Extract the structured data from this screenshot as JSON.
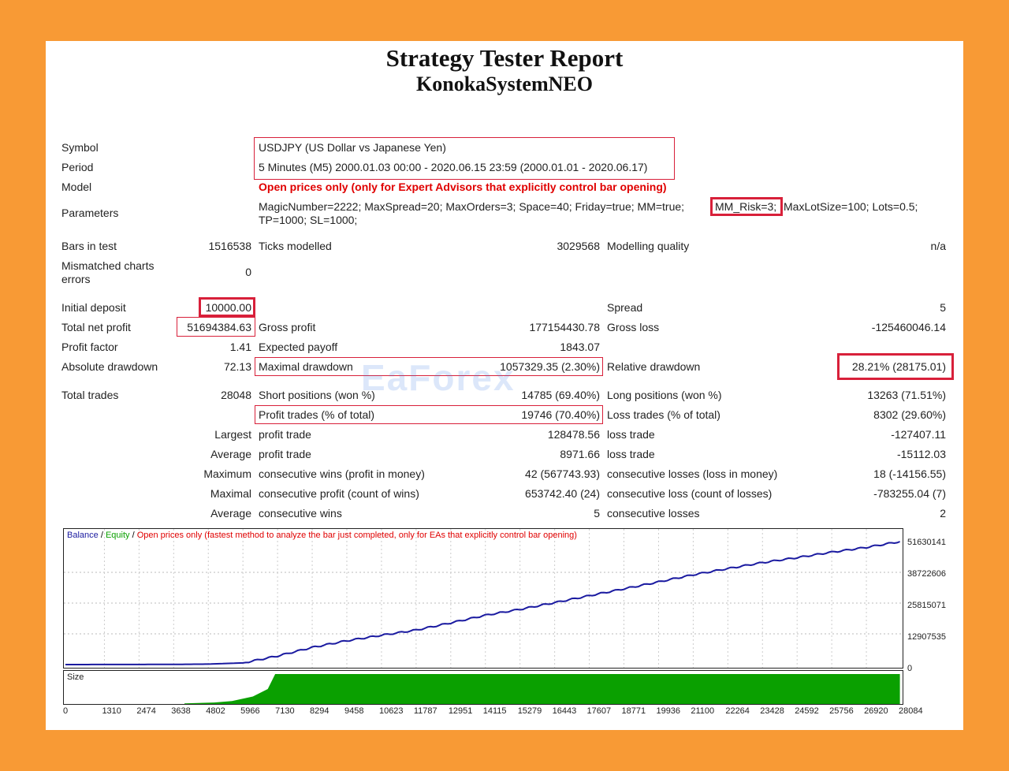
{
  "report": {
    "title": "Strategy Tester Report",
    "ea_name": "KonokaSystemNEO"
  },
  "info": {
    "symbol_label": "Symbol",
    "symbol_value": "USDJPY (US Dollar vs Japanese Yen)",
    "period_label": "Period",
    "period_value": "5 Minutes (M5) 2000.01.03 00:00 - 2020.06.15 23:59 (2000.01.01 - 2020.06.17)",
    "model_label": "Model",
    "model_value": "Open prices only (only for Expert Advisors that explicitly control bar opening)",
    "parameters_label": "Parameters",
    "parameters_line1_a": "MagicNumber=2222; MaxSpread=20; MaxOrders=3; Space=40; Friday=true; MM=true;",
    "parameters_line1_b": "MM_Risk=3;",
    "parameters_line1_c": "MaxLotSize=100; Lots=0.5;",
    "parameters_line2": "TP=1000; SL=1000;"
  },
  "stats": {
    "bars_label": "Bars in test",
    "bars_value": "1516538",
    "ticks_label": "Ticks modelled",
    "ticks_value": "3029568",
    "quality_label": "Modelling quality",
    "quality_value": "n/a",
    "mismatch_label_1": "Mismatched charts",
    "mismatch_label_2": "errors",
    "mismatch_value": "0",
    "deposit_label": "Initial deposit",
    "deposit_value": "10000.00",
    "spread_label": "Spread",
    "spread_value": "5",
    "net_label": "Total net profit",
    "net_value": "51694384.63",
    "gross_profit_label": "Gross profit",
    "gross_profit_value": "177154430.78",
    "gross_loss_label": "Gross loss",
    "gross_loss_value": "-125460046.14",
    "pf_label": "Profit factor",
    "pf_value": "1.41",
    "payoff_label": "Expected payoff",
    "payoff_value": "1843.07",
    "abs_dd_label": "Absolute drawdown",
    "abs_dd_value": "72.13",
    "max_dd_label": "Maximal drawdown",
    "max_dd_value": "1057329.35 (2.30%)",
    "rel_dd_label": "Relative drawdown",
    "rel_dd_value": "28.21% (28175.01)",
    "trades_label": "Total trades",
    "trades_value": "28048",
    "short_label": "Short positions (won %)",
    "short_value": "14785 (69.40%)",
    "long_label": "Long positions (won %)",
    "long_value": "13263 (71.51%)",
    "profit_trades_label": "Profit trades (% of total)",
    "profit_trades_value": "19746 (70.40%)",
    "loss_trades_label": "Loss trades (% of total)",
    "loss_trades_value": "8302 (29.60%)",
    "largest_label": "Largest",
    "largest_profit_label": "profit trade",
    "largest_profit_value": "128478.56",
    "largest_loss_label": "loss trade",
    "largest_loss_value": "-127407.11",
    "average_label": "Average",
    "average_profit_label": "profit trade",
    "average_profit_value": "8971.66",
    "average_loss_label": "loss trade",
    "average_loss_value": "-15112.03",
    "maximum_label": "Maximum",
    "max_wins_label": "consecutive wins (profit in money)",
    "max_wins_value": "42 (567743.93)",
    "max_losses_label": "consecutive losses (loss in money)",
    "max_losses_value": "18 (-14156.55)",
    "maximal_label": "Maximal",
    "max_profit_label": "consecutive profit (count of wins)",
    "max_profit_value": "653742.40 (24)",
    "max_loss_label": "consecutive loss (count of losses)",
    "max_loss_value": "-783255.04 (7)",
    "average2_label": "Average",
    "avg_wins_label": "consecutive wins",
    "avg_wins_value": "5",
    "avg_losses_label": "consecutive losses",
    "avg_losses_value": "2"
  },
  "chart_legend": {
    "balance": "Balance",
    "sep1": " / ",
    "equity": "Equity",
    "sep2": " / ",
    "model": "Open prices only (fastest method to analyze the bar just completed, only for EAs that explicitly control bar opening)"
  },
  "size_label": "Size",
  "watermark": "EaForex",
  "chart_data": {
    "type": "line",
    "series": [
      {
        "name": "Balance",
        "color": "#1a1aa0",
        "x": [
          0,
          1310,
          2474,
          3638,
          4802,
          5966,
          7130,
          8294,
          9458,
          10623,
          11787,
          12951,
          14115,
          15279,
          16443,
          17607,
          18771,
          19936,
          21100,
          22264,
          23428,
          24592,
          25756,
          26920,
          28048
        ],
        "y": [
          10000,
          20000,
          40000,
          80000,
          200000,
          700000,
          3600000,
          7200000,
          10000000,
          12300000,
          14500000,
          17500000,
          20700000,
          23200000,
          26000000,
          28900000,
          31800000,
          34700000,
          37700000,
          40300000,
          42800000,
          44900000,
          47200000,
          49200000,
          51630141
        ]
      }
    ],
    "y_ticks": [
      "51630141",
      "38722606",
      "25815071",
      "12907535",
      "0"
    ],
    "x_ticks": [
      "0",
      "1310",
      "2474",
      "3638",
      "4802",
      "5966",
      "7130",
      "8294",
      "9458",
      "10623",
      "11787",
      "12951",
      "14115",
      "15279",
      "16443",
      "17607",
      "18771",
      "19936",
      "21100",
      "22264",
      "23428",
      "24592",
      "25756",
      "26920",
      "28084"
    ],
    "ylim": [
      0,
      51630141
    ],
    "xlim": [
      0,
      28084
    ],
    "size_series": {
      "name": "Size",
      "color": "#0aa000",
      "x": [
        4000,
        5000,
        5600,
        6300,
        6800,
        7050,
        28048
      ],
      "y": [
        0.02,
        0.05,
        0.1,
        0.25,
        0.5,
        1,
        1
      ]
    },
    "grid": true
  }
}
